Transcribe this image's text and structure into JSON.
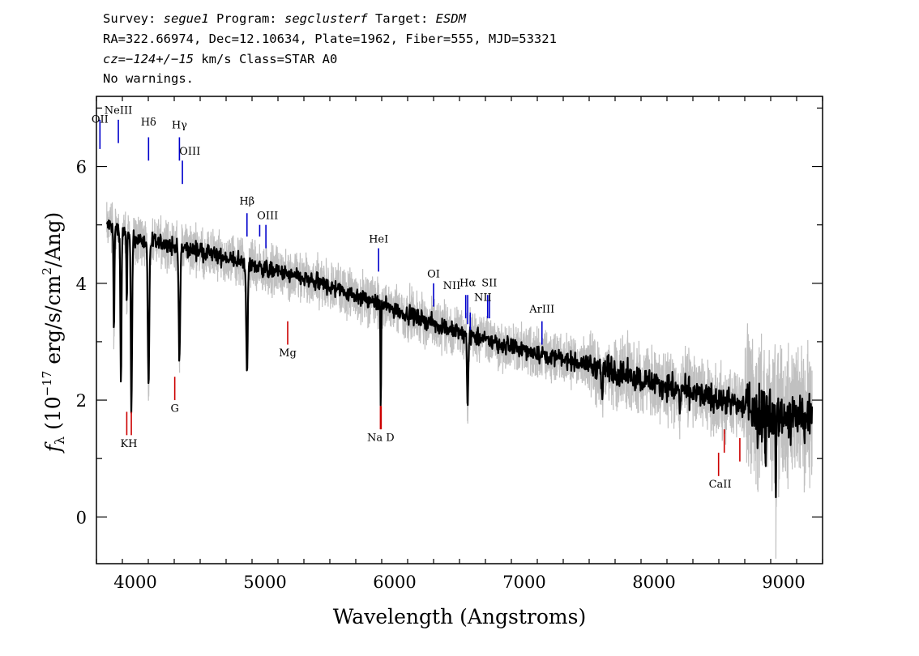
{
  "header": {
    "line1": [
      {
        "t": "Survey: ",
        "it": false
      },
      {
        "t": "segue1",
        "it": true
      },
      {
        "t": " Program: ",
        "it": false
      },
      {
        "t": "segclusterf",
        "it": true
      },
      {
        "t": " Target: ",
        "it": false
      },
      {
        "t": "ESDM",
        "it": true
      }
    ],
    "line2": "RA=322.66974, Dec=12.10634, Plate=1962, Fiber=555, MJD=53321",
    "line3": [
      {
        "t": "cz=−124+/−15",
        "it": true
      },
      {
        "t": " km/s Class=STAR A0",
        "it": false
      }
    ],
    "line4": "No warnings."
  },
  "chart_data": {
    "type": "line",
    "xlabel": "Wavelength (Angstroms)",
    "ylabel_parts": {
      "f": "f",
      "sub": "λ",
      "pre": "(10",
      "exp1": "−17",
      "mid": " erg/s/cm",
      "exp2": "2",
      "post": "/Ang)"
    },
    "xlim": [
      3700,
      9300
    ],
    "ylim": [
      -0.8,
      7.2
    ],
    "xticks": [
      4000,
      5000,
      6000,
      7000,
      8000,
      9000
    ],
    "yticks": [
      0,
      2,
      4,
      6
    ],
    "colors": {
      "flux": "#000000",
      "error": "#c0c0c0",
      "emission": "#0000cc",
      "absorption": "#cc0000"
    },
    "continuum": [
      [
        3780,
        5.0
      ],
      [
        4000,
        4.75
      ],
      [
        4500,
        4.55
      ],
      [
        5000,
        4.25
      ],
      [
        5500,
        3.95
      ],
      [
        6000,
        3.55
      ],
      [
        6500,
        3.15
      ],
      [
        7000,
        2.85
      ],
      [
        7500,
        2.6
      ],
      [
        8000,
        2.3
      ],
      [
        8500,
        2.0
      ],
      [
        9000,
        1.75
      ],
      [
        9220,
        1.65
      ]
    ],
    "absorption_features": [
      {
        "wave": 3835,
        "depth": 1.8,
        "width": 5
      },
      {
        "wave": 3889,
        "depth": 2.6,
        "width": 6
      },
      {
        "wave": 3934,
        "depth": 1.2,
        "width": 4
      },
      {
        "wave": 3970,
        "depth": 3.0,
        "width": 7
      },
      {
        "wave": 4102,
        "depth": 2.5,
        "width": 8
      },
      {
        "wave": 4340,
        "depth": 2.0,
        "width": 8
      },
      {
        "wave": 4861,
        "depth": 1.9,
        "width": 8
      },
      {
        "wave": 5893,
        "depth": 1.7,
        "width": 4
      },
      {
        "wave": 6563,
        "depth": 1.15,
        "width": 7
      },
      {
        "wave": 7600,
        "depth": 0.4,
        "width": 8
      },
      {
        "wave": 8200,
        "depth": 0.4,
        "width": 6
      },
      {
        "wave": 8800,
        "depth": 0.7,
        "width": 4
      },
      {
        "wave": 8860,
        "depth": 0.9,
        "width": 4
      },
      {
        "wave": 8940,
        "depth": 1.5,
        "width": 4
      }
    ],
    "emission_lines": [
      {
        "label": "OII",
        "wave": 3727,
        "y1": 6.3,
        "y2": 6.8
      },
      {
        "label": "NeIII",
        "wave": 3869,
        "y1": 6.4,
        "y2": 6.8
      },
      {
        "label": "Hδ",
        "wave": 4102,
        "y1": 6.1,
        "y2": 6.5
      },
      {
        "label": "Hγ",
        "wave": 4340,
        "y1": 6.1,
        "y2": 6.5
      },
      {
        "label": "OIII",
        "wave": 4363,
        "y1": 5.7,
        "y2": 6.1
      },
      {
        "label": "Hβ",
        "wave": 4861,
        "y1": 4.8,
        "y2": 5.2
      },
      {
        "label": "OIII",
        "wave": 4959,
        "y1": 4.8,
        "y2": 5.0
      },
      {
        "label": "OIII",
        "wave": 5007,
        "y1": 4.6,
        "y2": 5.0
      },
      {
        "label": "HeI",
        "wave": 5876,
        "y1": 4.2,
        "y2": 4.6
      },
      {
        "label": "OI",
        "wave": 6300,
        "y1": 3.6,
        "y2": 4.0
      },
      {
        "label": "NII",
        "wave": 6548,
        "y1": 3.4,
        "y2": 3.8
      },
      {
        "label": "Hα",
        "wave": 6563,
        "y1": 3.3,
        "y2": 3.8
      },
      {
        "label": "NII",
        "wave": 6583,
        "y1": 3.2,
        "y2": 3.5
      },
      {
        "label": "SII",
        "wave": 6717,
        "y1": 3.4,
        "y2": 3.8
      },
      {
        "label": "SII",
        "wave": 6731,
        "y1": 3.4,
        "y2": 3.8
      },
      {
        "label": "ArIII",
        "wave": 7136,
        "y1": 2.95,
        "y2": 3.35
      }
    ],
    "absorption_lines": [
      {
        "label": "K",
        "wave": 3934,
        "y1": 1.4,
        "y2": 1.8
      },
      {
        "label": "H",
        "wave": 3969,
        "y1": 1.4,
        "y2": 1.8
      },
      {
        "label": "G",
        "wave": 4304,
        "y1": 2.0,
        "y2": 2.4
      },
      {
        "label": "Mg",
        "wave": 5175,
        "y1": 2.95,
        "y2": 3.35
      },
      {
        "label": "Na",
        "wave": 5890,
        "y1": 1.5,
        "y2": 1.9
      },
      {
        "label": "D",
        "wave": 5896,
        "y1": 1.5,
        "y2": 1.9
      },
      {
        "label": "CaII",
        "wave": 8498,
        "y1": 0.7,
        "y2": 1.1
      },
      {
        "label": "CaII",
        "wave": 8542,
        "y1": 1.1,
        "y2": 1.5
      },
      {
        "label": "CaII",
        "wave": 8662,
        "y1": 0.95,
        "y2": 1.35
      }
    ],
    "line_label_texts": [
      {
        "label": "OII",
        "wave": 3727,
        "y": 6.75
      },
      {
        "label": "NeIII",
        "wave": 3869,
        "y": 6.9
      },
      {
        "label": "Hδ",
        "wave": 4102,
        "y": 6.7
      },
      {
        "label": "Hγ",
        "wave": 4340,
        "y": 6.65
      },
      {
        "label": "OIII",
        "wave": 4420,
        "y": 6.2
      },
      {
        "label": "Hβ",
        "wave": 4861,
        "y": 5.35
      },
      {
        "label": "OIII",
        "wave": 5020,
        "y": 5.1
      },
      {
        "label": "HeI",
        "wave": 5876,
        "y": 4.7
      },
      {
        "label": "OI",
        "wave": 6300,
        "y": 4.1
      },
      {
        "label": "NII",
        "wave": 6440,
        "y": 3.9
      },
      {
        "label": "Hα",
        "wave": 6563,
        "y": 3.95
      },
      {
        "label": "SII",
        "wave": 6730,
        "y": 3.95
      },
      {
        "label": "NII",
        "wave": 6680,
        "y": 3.7
      },
      {
        "label": "ArIII",
        "wave": 7136,
        "y": 3.5
      },
      {
        "label": "KH",
        "wave": 3950,
        "y": 1.2
      },
      {
        "label": "G",
        "wave": 4304,
        "y": 1.8
      },
      {
        "label": "Mg",
        "wave": 5175,
        "y": 2.75
      },
      {
        "label": "Na  D",
        "wave": 5893,
        "y": 1.3
      },
      {
        "label": "CaII",
        "wave": 8510,
        "y": 0.5
      }
    ]
  }
}
